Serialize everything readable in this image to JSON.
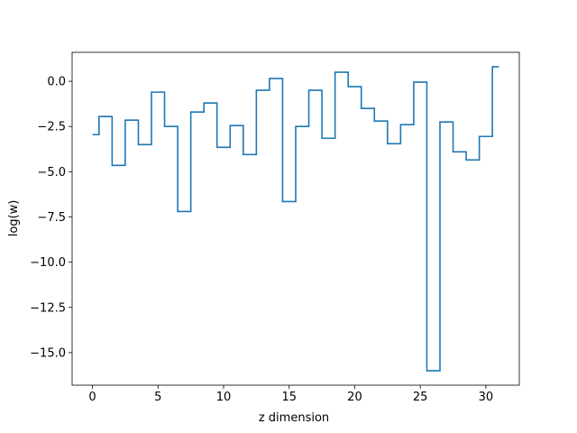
{
  "chart_data": {
    "type": "line",
    "drawstyle": "steps-mid",
    "title": "",
    "xlabel": "z dimension",
    "ylabel": "log(w)",
    "xlim": [
      -1.55,
      32.55
    ],
    "ylim": [
      -16.8,
      1.6
    ],
    "xticks": [
      0,
      5,
      10,
      15,
      20,
      25,
      30
    ],
    "yticks": [
      0.0,
      -2.5,
      -5.0,
      -7.5,
      -10.0,
      -12.5,
      -15.0
    ],
    "xtick_labels": [
      "0",
      "5",
      "10",
      "15",
      "20",
      "25",
      "30"
    ],
    "ytick_labels": [
      "0.0",
      "−2.5",
      "−5.0",
      "−7.5",
      "−10.0",
      "−12.5",
      "−15.0"
    ],
    "grid": false,
    "series": [
      {
        "color": "#1f77b4",
        "x": [
          0,
          1,
          2,
          3,
          4,
          5,
          6,
          7,
          8,
          9,
          10,
          11,
          12,
          13,
          14,
          15,
          16,
          17,
          18,
          19,
          20,
          21,
          22,
          23,
          24,
          25,
          26,
          27,
          28,
          29,
          30,
          31
        ],
        "y": [
          -2.95,
          -1.95,
          -4.65,
          -2.15,
          -3.5,
          -0.6,
          -2.5,
          -7.2,
          -1.7,
          -1.2,
          -3.65,
          -2.45,
          -4.05,
          -0.5,
          0.15,
          -6.65,
          -2.5,
          -0.5,
          -3.15,
          0.5,
          -0.3,
          -1.5,
          -2.2,
          -3.45,
          -2.4,
          -0.05,
          -16.0,
          -2.25,
          -3.9,
          -4.35,
          -3.05,
          0.8
        ]
      }
    ]
  }
}
